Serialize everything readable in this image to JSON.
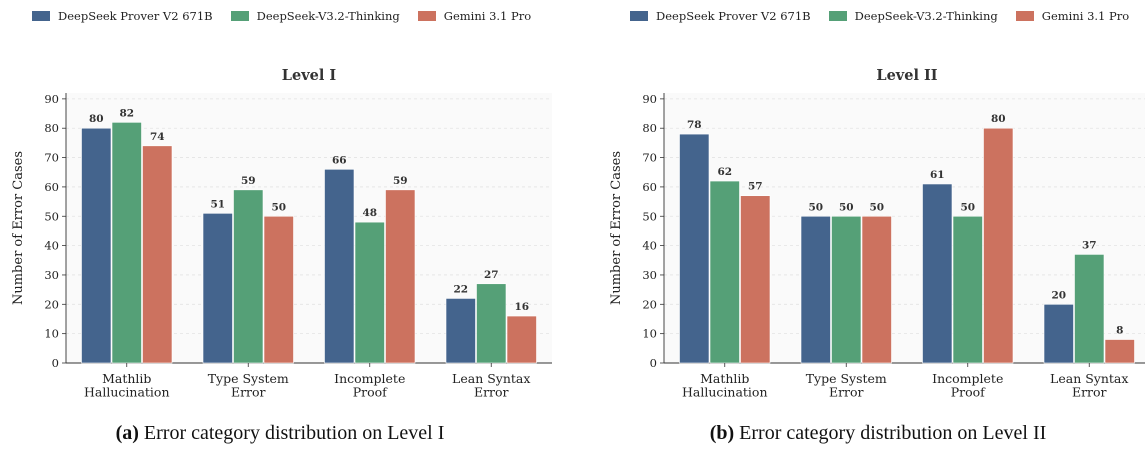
{
  "legend": [
    {
      "name": "DeepSeek Prover V2 671B",
      "color": "#44648d"
    },
    {
      "name": "DeepSeek-V3.2-Thinking",
      "color": "#55a077"
    },
    {
      "name": "Gemini 3.1 Pro",
      "color": "#cc725f"
    }
  ],
  "captions": [
    {
      "label": "(a)",
      "text": " Error category distribution on Level I"
    },
    {
      "label": "(b)",
      "text": " Error category distribution on Level II"
    }
  ],
  "chart_data": [
    {
      "type": "bar",
      "title": "Level I",
      "ylabel": "Number of Error Cases",
      "xlabel": "",
      "ylim": [
        0,
        92
      ],
      "yticks": [
        0,
        10,
        20,
        30,
        40,
        50,
        60,
        70,
        80,
        90
      ],
      "grid": true,
      "legend_position": "top-left",
      "categories": [
        [
          "Mathlib",
          "Hallucination"
        ],
        [
          "Type System",
          "Error"
        ],
        [
          "Incomplete",
          "Proof"
        ],
        [
          "Lean Syntax",
          "Error"
        ]
      ],
      "series": [
        {
          "name": "DeepSeek Prover V2 671B",
          "values": [
            80,
            51,
            66,
            22
          ]
        },
        {
          "name": "DeepSeek-V3.2-Thinking",
          "values": [
            82,
            59,
            48,
            27
          ]
        },
        {
          "name": "Gemini 3.1 Pro",
          "values": [
            74,
            50,
            59,
            16
          ]
        }
      ]
    },
    {
      "type": "bar",
      "title": "Level II",
      "ylabel": "Number of Error Cases",
      "xlabel": "",
      "ylim": [
        0,
        92
      ],
      "yticks": [
        0,
        10,
        20,
        30,
        40,
        50,
        60,
        70,
        80,
        90
      ],
      "grid": true,
      "legend_position": "top-left",
      "categories": [
        [
          "Mathlib",
          "Hallucination"
        ],
        [
          "Type System",
          "Error"
        ],
        [
          "Incomplete",
          "Proof"
        ],
        [
          "Lean Syntax",
          "Error"
        ]
      ],
      "series": [
        {
          "name": "DeepSeek Prover V2 671B",
          "values": [
            78,
            50,
            61,
            20
          ]
        },
        {
          "name": "DeepSeek-V3.2-Thinking",
          "values": [
            62,
            50,
            50,
            37
          ]
        },
        {
          "name": "Gemini 3.1 Pro",
          "values": [
            57,
            50,
            80,
            8
          ]
        }
      ]
    }
  ]
}
